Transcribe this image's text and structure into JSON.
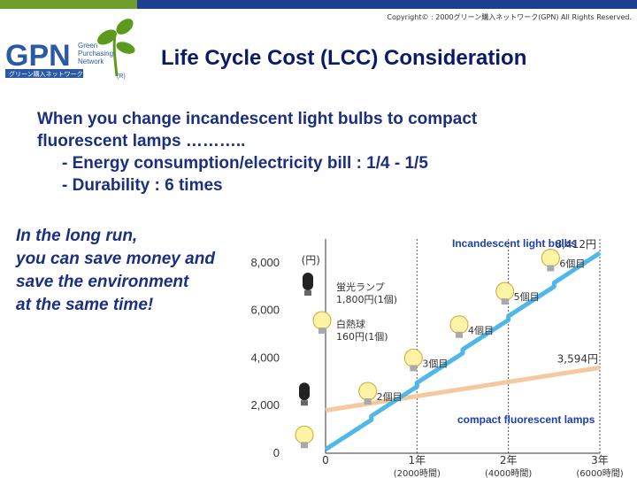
{
  "header": {
    "copyright": "Copyright© : 2000グリーン購入ネットワーク(GPN) All Rights Reserved.",
    "logo_text": "GPN",
    "logo_tagline": [
      "Green",
      "Purchasing",
      "Network"
    ],
    "logo_japanese": "グリーン購入ネットワーク",
    "logo_registered": "(R)",
    "title": "Life Cycle Cost (LCC)  Consideration"
  },
  "intro": {
    "line1": "When you change incandescent light bulbs to compact",
    "line2": "fluorescent lamps ………..",
    "bullet1": "- Energy consumption/electricity bill : 1/4 - 1/5",
    "bullet2": "- Durability : 6 times"
  },
  "long_run": {
    "line1": "In the long run,",
    "line2": "you can save money and",
    "line3": "save the environment",
    "line4": "at the same time!"
  },
  "colors": {
    "brand_green": "#6f9e2c",
    "brand_blue": "#1d3f8f",
    "title_color": "#0a1a6a",
    "text_blue": "#1b2f80",
    "incandescent_line": "#4fb8e8",
    "cfl_line": "#f5c9a0"
  },
  "chart_data": {
    "type": "line",
    "y_unit": "(円)",
    "yticks": [
      "0",
      "2,000",
      "4,000",
      "6,000",
      "8,000"
    ],
    "ylim": [
      0,
      9000
    ],
    "xticks": [
      {
        "value": 0,
        "label": "0",
        "sub": ""
      },
      {
        "value": 2000,
        "label": "1年",
        "sub": "(2000時間)"
      },
      {
        "value": 4000,
        "label": "2年",
        "sub": "(4000時間)"
      },
      {
        "value": 6000,
        "label": "3年",
        "sub": "(6000時間)"
      }
    ],
    "xlim": [
      0,
      6000
    ],
    "series": [
      {
        "name": "Incandescent light bulbs",
        "x": [
          0,
          1000,
          1000,
          2000,
          2000,
          3000,
          3000,
          4000,
          4000,
          5000,
          5000,
          6000
        ],
        "y": [
          160,
          1400,
          1560,
          2800,
          2960,
          4200,
          4360,
          5600,
          5760,
          7000,
          7160,
          8412
        ],
        "end_label": "8,412円"
      },
      {
        "name": "compact fluorescent lamps",
        "x": [
          0,
          6000
        ],
        "y": [
          1800,
          3594
        ],
        "end_label": "3,594円"
      }
    ],
    "replacement_labels": [
      "2個目",
      "3個目",
      "4個目",
      "5個目",
      "6個目"
    ],
    "legend_cfl": [
      "蛍光ランプ",
      "1,800円(1個)"
    ],
    "legend_inc": [
      "白熱球",
      "160円(1個)"
    ]
  },
  "labels": {
    "incandescent": "Incandescent light bulbs",
    "cfl": "compact fluorescent lamps"
  }
}
